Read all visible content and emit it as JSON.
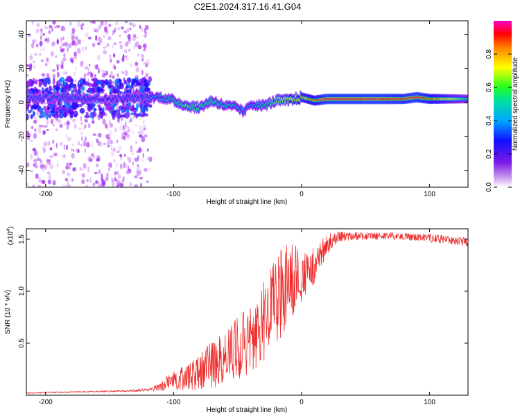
{
  "title": "C2E1.2024.317.16.41.G04",
  "colors": {
    "snr_line": "#ee2a2a",
    "ridge": "#e8201a",
    "background": "#ffffff"
  },
  "chart_data": [
    {
      "type": "heatmap",
      "title": "C2E1.2024.317.16.41.G04",
      "xlabel": "Height of straight line (km)",
      "ylabel": "Frequency (Hz)",
      "xlim": [
        -215,
        130
      ],
      "ylim": [
        -50,
        48
      ],
      "x_ticks": [
        -200,
        -100,
        0,
        100
      ],
      "y_ticks": [
        -40,
        -20,
        0,
        20,
        40
      ],
      "x_tick_labels": [
        "-200",
        "-100",
        "0",
        "100"
      ],
      "y_tick_labels": [
        "-40",
        "-20",
        "0",
        "20",
        "40"
      ],
      "colorbar": {
        "label": "Normalized spectral amplitude",
        "range": [
          0,
          1
        ],
        "ticks": [
          0.0,
          0.2,
          0.4,
          0.6,
          0.8
        ],
        "tick_labels": [
          "0.0",
          "0.2",
          "0.4",
          "0.6",
          "0.8"
        ],
        "colormap": [
          "#ffffff",
          "#a020f0",
          "#2000ff",
          "#00c8ff",
          "#00ff60",
          "#ffff00",
          "#ff8000",
          "#ff0000",
          "#ff00ff"
        ]
      },
      "ridge": {
        "x": [
          -215,
          -180,
          -150,
          -120,
          -110,
          -100,
          -90,
          -80,
          -70,
          -60,
          -50,
          -45,
          -40,
          -30,
          -20,
          -10,
          0,
          10,
          20,
          40,
          60,
          80,
          90,
          100,
          130
        ],
        "y": [
          2,
          3,
          2,
          3,
          3,
          1,
          -2,
          -3,
          1,
          -2,
          -3,
          -6,
          -1,
          -2,
          1,
          1,
          3,
          1,
          2,
          2,
          2,
          2,
          3,
          2,
          2
        ],
        "amplitude": [
          0.3,
          0.35,
          0.3,
          0.35,
          0.45,
          0.5,
          0.6,
          0.55,
          0.55,
          0.5,
          0.45,
          0.35,
          0.4,
          0.5,
          0.6,
          0.7,
          0.75,
          0.85,
          0.95,
          0.95,
          0.95,
          0.9,
          0.95,
          0.85,
          0.5
        ]
      },
      "scatter_region": {
        "x_range": [
          -215,
          -118
        ],
        "y_range": [
          -50,
          48
        ],
        "amplitude": 0.05
      }
    },
    {
      "type": "line",
      "xlabel": "Height of straight line (km)",
      "ylabel": "SNR (10 * v/v)",
      "y_multiplier_label": "(x10",
      "y_multiplier_exponent": "4",
      "y_multiplier_suffix": ")",
      "xlim": [
        -215,
        130
      ],
      "ylim": [
        0,
        16000
      ],
      "x_ticks": [
        -200,
        -100,
        0,
        100
      ],
      "y_ticks": [
        5000,
        10000,
        15000
      ],
      "x_tick_labels": [
        "-200",
        "-100",
        "0",
        "100"
      ],
      "y_tick_labels": [
        "0.5",
        "1.0",
        "1.5"
      ],
      "series": [
        {
          "x": [
            -215,
            -200,
            -180,
            -160,
            -140,
            -120,
            -110,
            -105,
            -100,
            -95,
            -90,
            -85,
            -80,
            -75,
            -70,
            -65,
            -60,
            -55,
            -50,
            -45,
            -40,
            -35,
            -30,
            -25,
            -20,
            -15,
            -10,
            -5,
            0,
            5,
            10,
            15,
            20,
            25,
            30,
            40,
            50,
            60,
            70,
            80,
            90,
            100,
            110,
            120,
            130
          ],
          "y": [
            200,
            250,
            300,
            350,
            400,
            500,
            800,
            1200,
            1400,
            1600,
            1800,
            2000,
            2300,
            2600,
            2900,
            3200,
            3600,
            4000,
            4500,
            5000,
            5500,
            6000,
            7000,
            8000,
            9000,
            10000,
            11000,
            11200,
            11500,
            12000,
            12500,
            13500,
            14500,
            15000,
            15200,
            15300,
            15300,
            15300,
            15300,
            15250,
            15200,
            15100,
            15000,
            14900,
            14700
          ],
          "noise": [
            50,
            60,
            60,
            60,
            80,
            150,
            400,
            700,
            900,
            1100,
            1300,
            1500,
            1800,
            2000,
            2200,
            2400,
            2600,
            2800,
            3000,
            3200,
            3400,
            3600,
            3800,
            4000,
            4200,
            4200,
            4000,
            3500,
            2500,
            2000,
            1800,
            1400,
            1000,
            700,
            500,
            400,
            350,
            350,
            350,
            350,
            350,
            400,
            400,
            400,
            400
          ]
        }
      ]
    }
  ]
}
